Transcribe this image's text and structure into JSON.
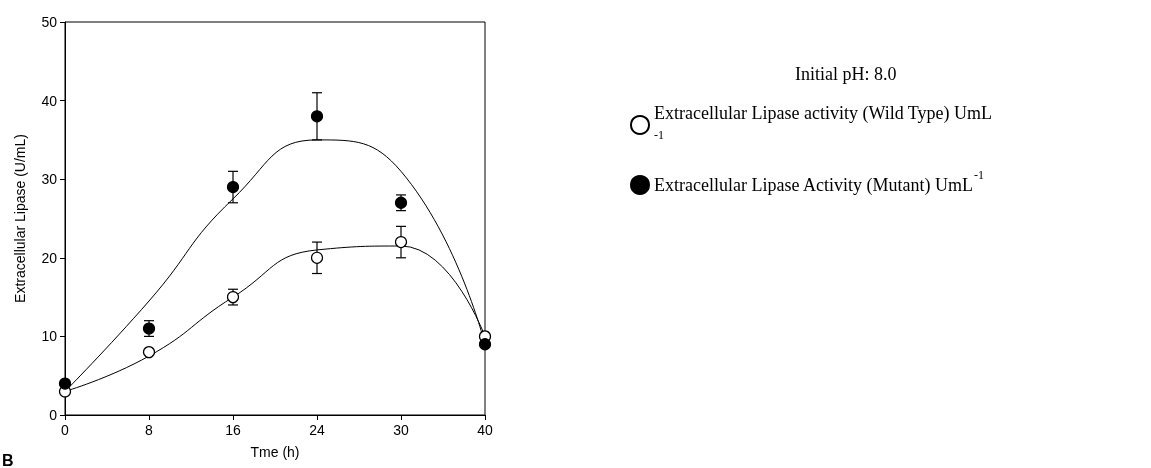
{
  "chart_data": {
    "type": "scatter",
    "xlabel": "Tme (h)",
    "ylabel": "Extracellular Lipase (U/mL)",
    "legend_title": "Initial pH: 8.0",
    "categories": [
      "0",
      "8",
      "16",
      "24",
      "30",
      "40"
    ],
    "ylim": [
      0,
      50
    ],
    "yticks": [
      0,
      10,
      20,
      30,
      40,
      50
    ],
    "grid": false,
    "legend": "right",
    "marker": "circle",
    "annotations": [
      "B"
    ],
    "series": [
      {
        "name": "Extracellular Lipase activity (Wild Type) UmL$^{-1}$",
        "color": "#ffffff",
        "values": [
          3,
          8,
          15,
          20,
          22,
          10
        ],
        "errors": [
          null,
          null,
          1,
          2,
          2,
          null
        ]
      },
      {
        "name": "Extracellular Lipase Activity (Mutant) UmL$^{-1}$",
        "color": "#000000",
        "values": [
          4,
          11,
          29,
          38,
          27,
          9
        ],
        "errors": [
          null,
          1,
          2,
          3,
          1,
          null
        ]
      },
      {
        "type": "line",
        "marker": "none",
        "color": "#000000",
        "values": [
          3,
          14.5,
          27.5,
          35,
          31,
          9
        ]
      },
      {
        "type": "line",
        "marker": "none",
        "color": "#000000",
        "values": [
          3,
          7.5,
          15,
          21,
          21.5,
          10
        ]
      }
    ]
  }
}
